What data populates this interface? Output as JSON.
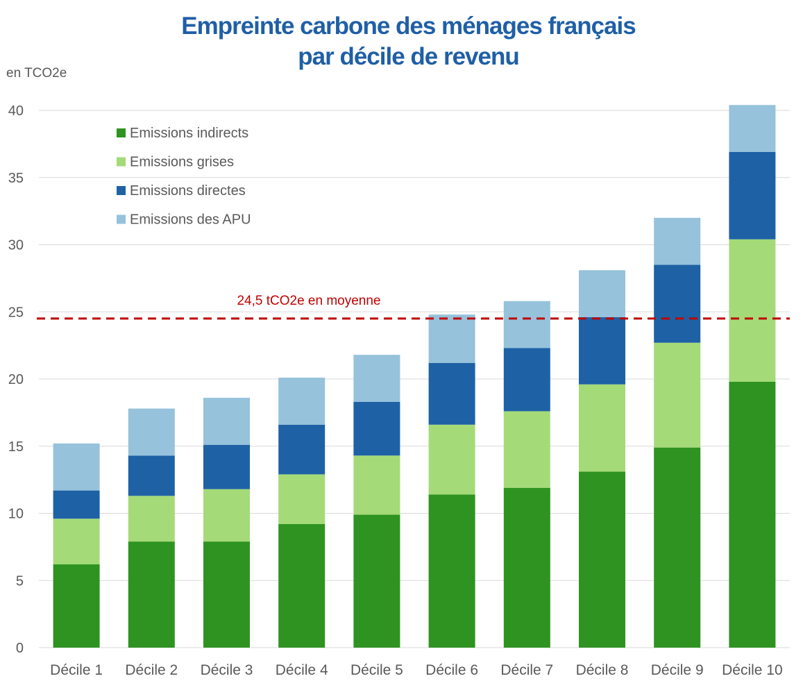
{
  "chart_data": {
    "type": "bar",
    "stacked": true,
    "title": "Empreinte carbone des ménages français",
    "subtitle": "par décile de revenu",
    "ylabel": "en TCO2e",
    "xlabel": "",
    "ylim": [
      0,
      40
    ],
    "yticks": [
      0,
      5,
      10,
      15,
      20,
      25,
      30,
      35,
      40
    ],
    "grid": true,
    "legend_position": "top-left",
    "categories": [
      "Décile 1",
      "Décile 2",
      "Décile 3",
      "Décile 4",
      "Décile 5",
      "Décile 6",
      "Décile 7",
      "Décile 8",
      "Décile 9",
      "Décile 10"
    ],
    "series": [
      {
        "name": "Emissions indirects",
        "color": "#2e9321",
        "values": [
          6.2,
          7.9,
          7.9,
          9.2,
          9.9,
          11.4,
          11.9,
          13.1,
          14.9,
          19.8
        ]
      },
      {
        "name": "Emissions grises",
        "color": "#a5da78",
        "values": [
          3.4,
          3.4,
          3.9,
          3.7,
          4.4,
          5.2,
          5.7,
          6.5,
          7.8,
          10.6
        ]
      },
      {
        "name": "Emissions directes",
        "color": "#1e62a5",
        "values": [
          2.1,
          3.0,
          3.3,
          3.7,
          4.0,
          4.6,
          4.7,
          5.0,
          5.8,
          6.5
        ]
      },
      {
        "name": "Emissions des APU",
        "color": "#96c2db",
        "values": [
          3.5,
          3.5,
          3.5,
          3.5,
          3.5,
          3.6,
          3.5,
          3.5,
          3.5,
          3.5
        ]
      }
    ],
    "reference_line": {
      "value": 24.5,
      "label": "24,5 tCO2e en moyenne",
      "color": "#c00000",
      "style": "dashed"
    }
  }
}
